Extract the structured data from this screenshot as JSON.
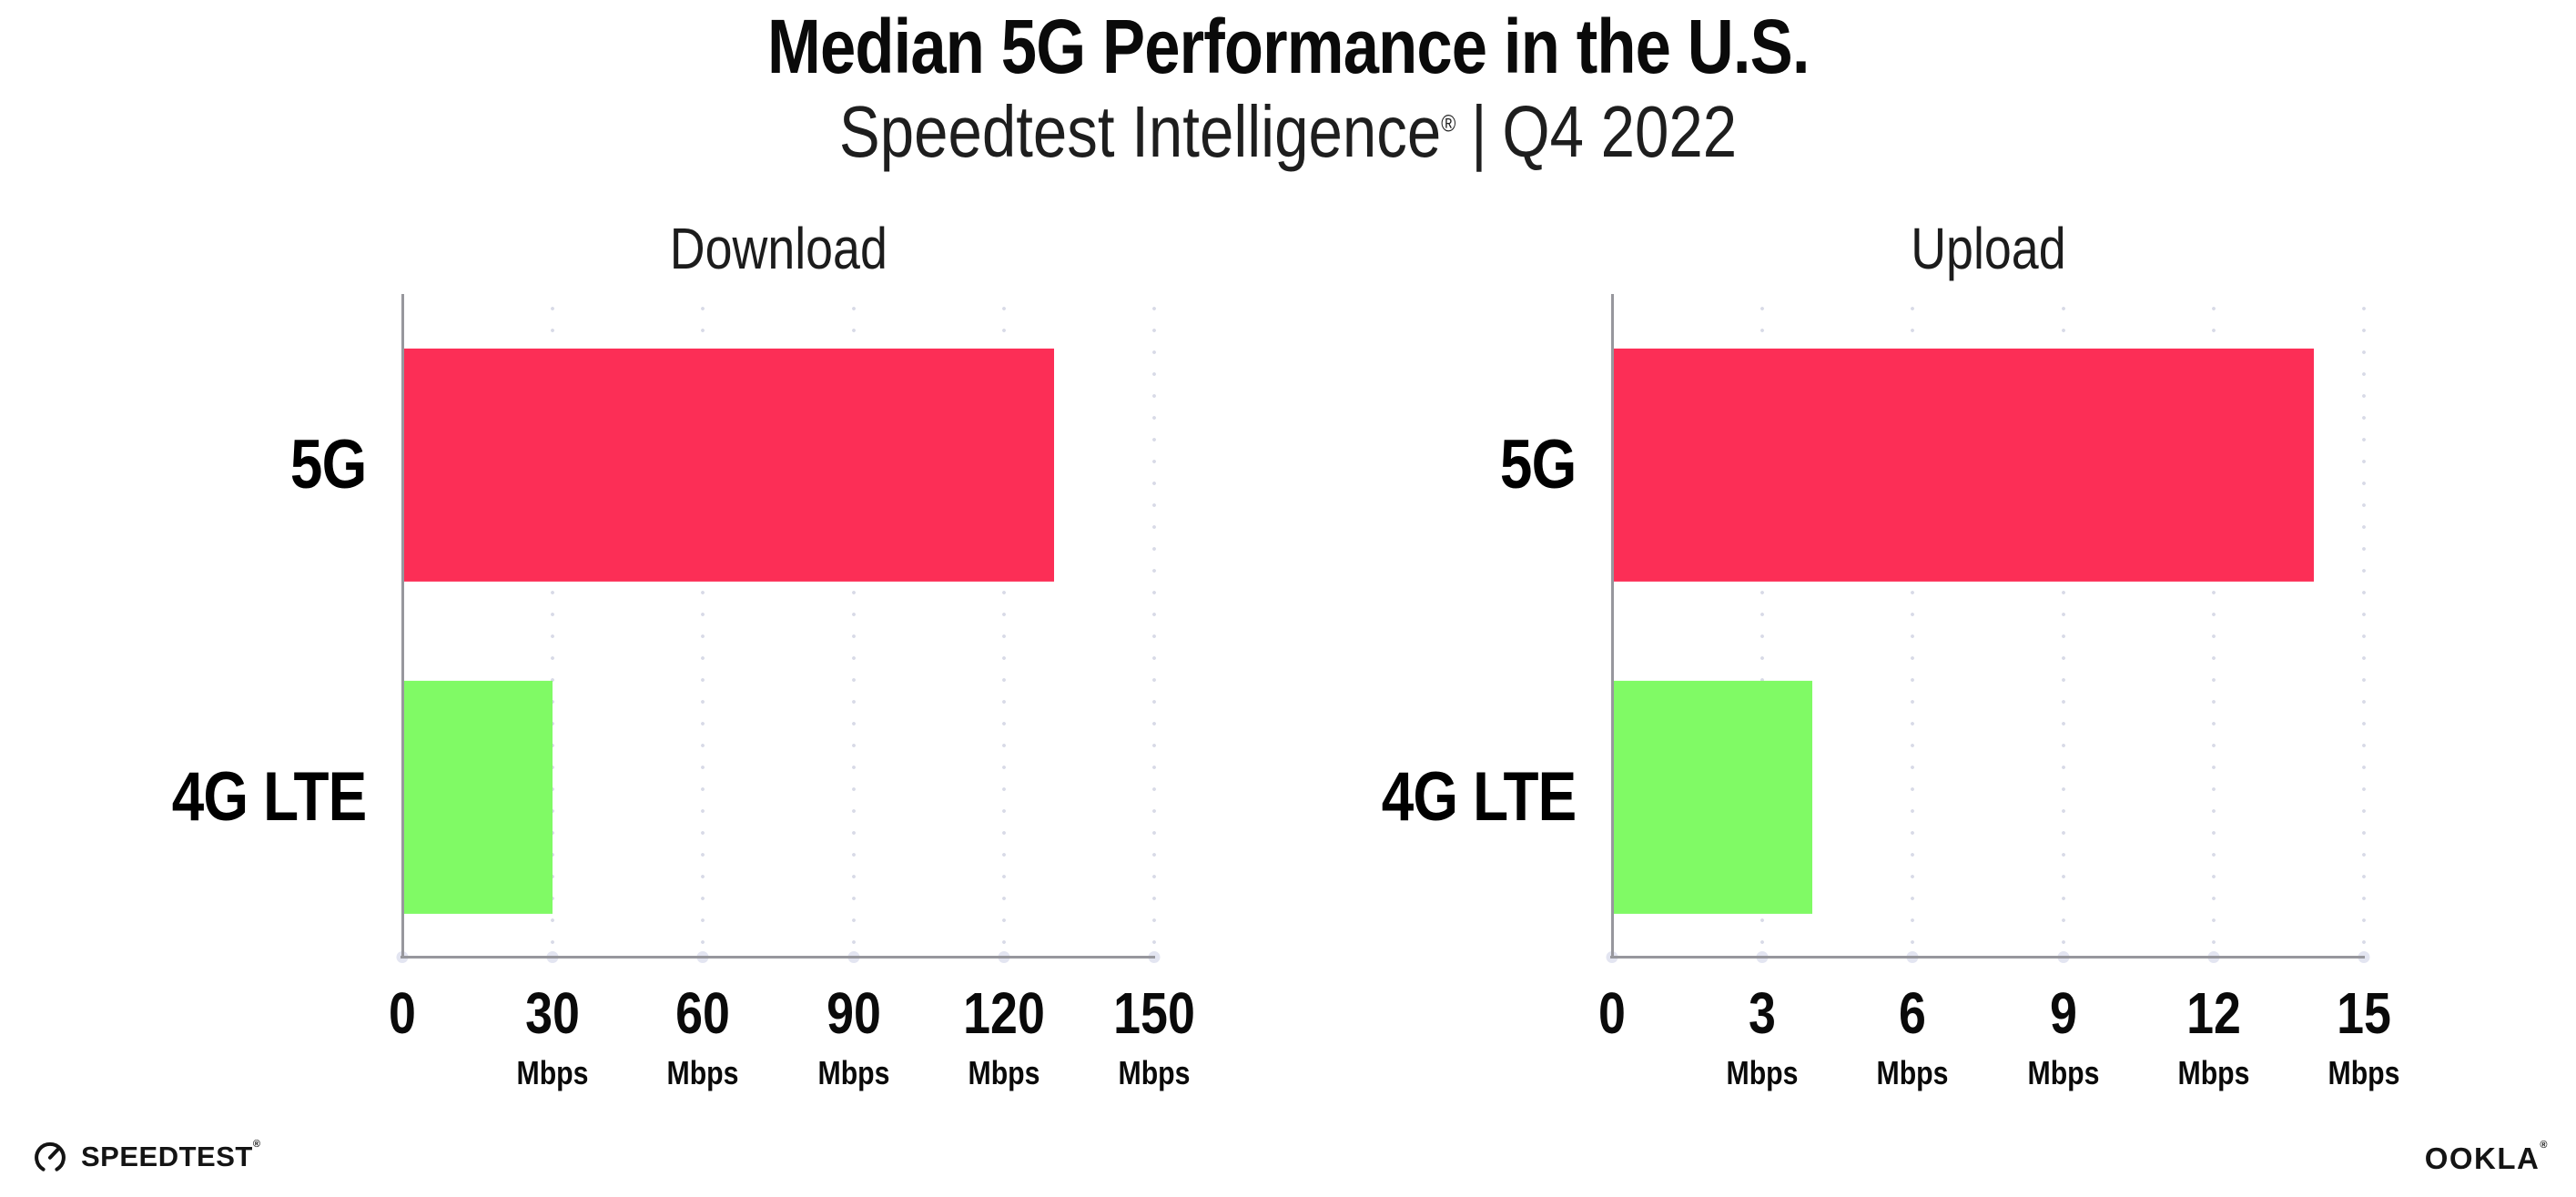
{
  "header": {
    "title": "Median 5G Performance in the U.S.",
    "subtitle_brand": "Speedtest Intelligence",
    "subtitle_reg": "®",
    "subtitle_separator": "|",
    "subtitle_period": "Q4 2022"
  },
  "chart_data": [
    {
      "type": "bar",
      "orientation": "horizontal",
      "title": "Download",
      "categories": [
        "5G",
        "4G LTE"
      ],
      "values": [
        130,
        30
      ],
      "unit": "Mbps",
      "xlim": [
        0,
        150
      ],
      "xticks": [
        0,
        30,
        60,
        90,
        120,
        150
      ],
      "bar_colors": [
        "#FC2E56",
        "#80FA65"
      ],
      "grid": "dotted-vertical-at-ticks",
      "legend": "none"
    },
    {
      "type": "bar",
      "orientation": "horizontal",
      "title": "Upload",
      "categories": [
        "5G",
        "4G LTE"
      ],
      "values": [
        14,
        4
      ],
      "unit": "Mbps",
      "xlim": [
        0,
        15
      ],
      "xticks": [
        0,
        3,
        6,
        9,
        12,
        15
      ],
      "bar_colors": [
        "#FC2E56",
        "#80FA65"
      ],
      "grid": "dotted-vertical-at-ticks",
      "legend": "none"
    }
  ],
  "footer": {
    "speedtest_label": "SPEEDTEST",
    "speedtest_mark": "®",
    "ookla_label": "OOKLA",
    "ookla_mark": "®"
  },
  "colors": {
    "bar_5g": "#FC2E56",
    "bar_4g_lte": "#80FA65",
    "axis": "#97979d",
    "gridline_dot": "#d8dae7",
    "tick_dot": "#e3e5f1",
    "text": "#0a0a0a"
  }
}
